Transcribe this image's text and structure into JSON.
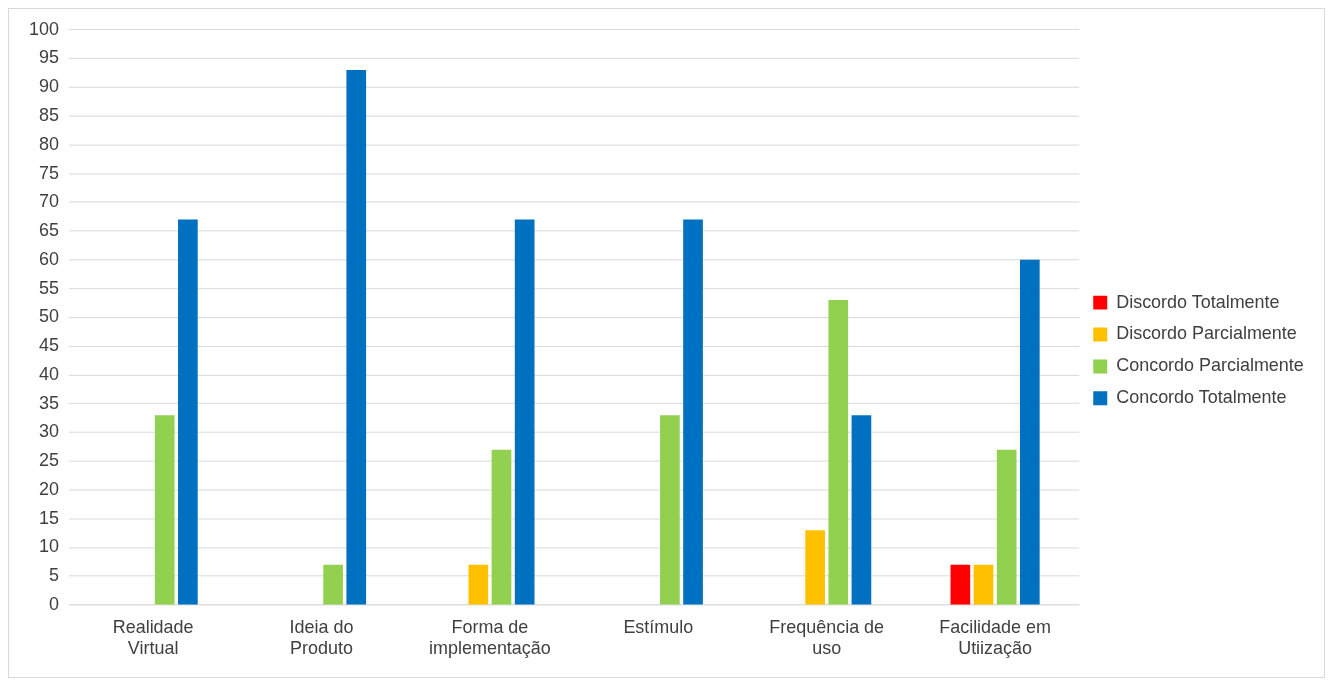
{
  "chart_data": {
    "type": "bar",
    "categories": [
      "Realidade Virtual",
      "Ideia do Produto",
      "Forma de implementação",
      "Estímulo",
      "Frequência de uso",
      "Facilidade em Utiização"
    ],
    "series": [
      {
        "name": "Discordo Totalmente",
        "color": "#ff0000",
        "values": [
          0,
          0,
          0,
          0,
          0,
          7
        ]
      },
      {
        "name": "Discordo Parcialmente",
        "color": "#ffc000",
        "values": [
          0,
          0,
          7,
          0,
          13,
          7
        ]
      },
      {
        "name": "Concordo Parcialmente",
        "color": "#92d050",
        "values": [
          33,
          7,
          27,
          33,
          53,
          27
        ]
      },
      {
        "name": "Concordo Totalmente",
        "color": "#0070c0",
        "values": [
          67,
          93,
          67,
          67,
          33,
          60
        ]
      }
    ],
    "ylim": [
      0,
      100
    ],
    "yticks": [
      0,
      5,
      10,
      15,
      20,
      25,
      30,
      35,
      40,
      45,
      50,
      55,
      60,
      65,
      70,
      75,
      80,
      85,
      90,
      95,
      100
    ],
    "grid": "y",
    "legend": "right"
  }
}
